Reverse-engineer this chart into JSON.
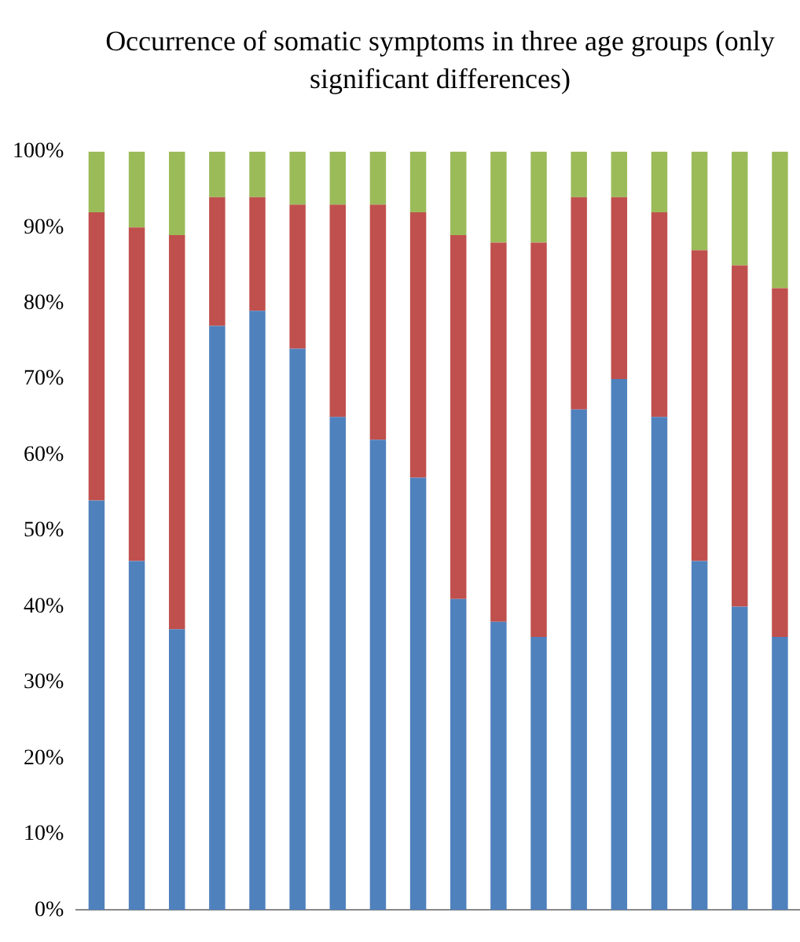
{
  "chart_data": {
    "type": "bar",
    "title": "Occurrence of somatic symptoms in three age groups (only significant differences)",
    "categories": [
      null,
      null,
      null,
      null,
      null,
      null,
      null,
      null,
      null,
      null,
      null,
      null,
      null,
      null,
      null,
      null,
      null,
      null
    ],
    "stacked": true,
    "series": [
      {
        "color": "#4f81bd",
        "values": [
          54,
          46,
          37,
          77,
          79,
          74,
          65,
          62,
          57,
          41,
          38,
          36,
          66,
          70,
          65,
          46,
          40,
          36
        ]
      },
      {
        "color": "#c0504d",
        "values": [
          38,
          44,
          52,
          17,
          15,
          19,
          28,
          31,
          35,
          48,
          50,
          52,
          28,
          24,
          27,
          41,
          45,
          46
        ]
      },
      {
        "color": "#9bbb59",
        "values": [
          8,
          10,
          11,
          6,
          6,
          7,
          7,
          7,
          8,
          11,
          12,
          12,
          6,
          6,
          8,
          13,
          15,
          18
        ]
      }
    ],
    "ylim": [
      0,
      100
    ],
    "yticks": [
      {
        "value": 0,
        "label": "0%"
      },
      {
        "value": 10,
        "label": "10%"
      },
      {
        "value": 20,
        "label": "20%"
      },
      {
        "value": 30,
        "label": "30%"
      },
      {
        "value": 40,
        "label": "40%"
      },
      {
        "value": 50,
        "label": "50%"
      },
      {
        "value": 60,
        "label": "60%"
      },
      {
        "value": 70,
        "label": "70%"
      },
      {
        "value": 80,
        "label": "80%"
      },
      {
        "value": 90,
        "label": "90%"
      },
      {
        "value": 100,
        "label": "100%"
      }
    ],
    "grid": false,
    "legend": false
  }
}
